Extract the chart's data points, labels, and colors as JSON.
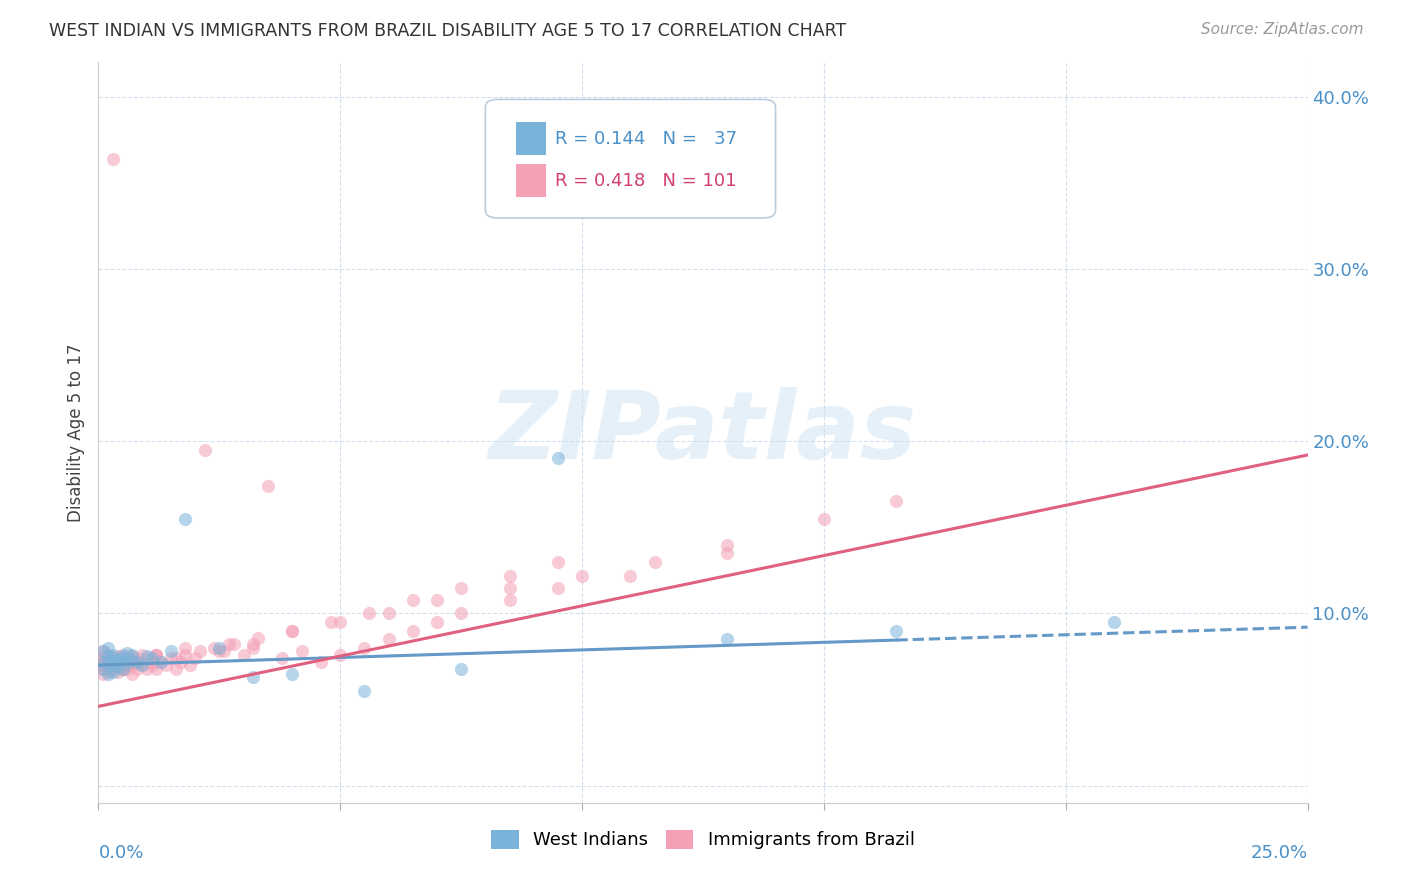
{
  "title": "WEST INDIAN VS IMMIGRANTS FROM BRAZIL DISABILITY AGE 5 TO 17 CORRELATION CHART",
  "source": "Source: ZipAtlas.com",
  "ylabel": "Disability Age 5 to 17",
  "xlim": [
    0.0,
    0.25
  ],
  "ylim": [
    -0.01,
    0.42
  ],
  "color_blue": "#7ab3d9",
  "color_pink": "#f4a0b5",
  "color_blue_line": "#6499c8",
  "color_pink_line": "#e06080",
  "color_blue_text": "#4a90c8",
  "color_pink_text": "#d04070",
  "wi_trend_x0": 0.0,
  "wi_trend_y0": 0.07,
  "wi_trend_x1": 0.25,
  "wi_trend_y1": 0.092,
  "br_trend_x0": 0.0,
  "br_trend_y0": 0.046,
  "br_trend_x1": 0.25,
  "br_trend_y1": 0.192,
  "wi_x": [
    0.001,
    0.001,
    0.001,
    0.002,
    0.002,
    0.002,
    0.002,
    0.003,
    0.003,
    0.003,
    0.003,
    0.004,
    0.004,
    0.004,
    0.005,
    0.005,
    0.005,
    0.006,
    0.006,
    0.007,
    0.007,
    0.008,
    0.009,
    0.01,
    0.011,
    0.013,
    0.015,
    0.018,
    0.025,
    0.032,
    0.04,
    0.055,
    0.075,
    0.095,
    0.13,
    0.165,
    0.21
  ],
  "wi_y": [
    0.072,
    0.068,
    0.078,
    0.065,
    0.075,
    0.08,
    0.072,
    0.07,
    0.074,
    0.066,
    0.076,
    0.073,
    0.069,
    0.071,
    0.075,
    0.068,
    0.074,
    0.077,
    0.071,
    0.073,
    0.076,
    0.072,
    0.07,
    0.075,
    0.074,
    0.072,
    0.078,
    0.155,
    0.08,
    0.063,
    0.065,
    0.055,
    0.068,
    0.19,
    0.085,
    0.09,
    0.095
  ],
  "br_x": [
    0.001,
    0.001,
    0.001,
    0.001,
    0.001,
    0.001,
    0.001,
    0.002,
    0.002,
    0.002,
    0.002,
    0.002,
    0.003,
    0.003,
    0.003,
    0.003,
    0.003,
    0.004,
    0.004,
    0.004,
    0.004,
    0.005,
    0.005,
    0.005,
    0.005,
    0.006,
    0.006,
    0.006,
    0.007,
    0.007,
    0.007,
    0.008,
    0.008,
    0.008,
    0.009,
    0.009,
    0.01,
    0.01,
    0.011,
    0.011,
    0.012,
    0.012,
    0.013,
    0.014,
    0.015,
    0.016,
    0.017,
    0.018,
    0.019,
    0.02,
    0.022,
    0.024,
    0.026,
    0.028,
    0.03,
    0.032,
    0.035,
    0.038,
    0.042,
    0.046,
    0.05,
    0.055,
    0.06,
    0.065,
    0.07,
    0.075,
    0.085,
    0.095,
    0.11,
    0.13,
    0.15,
    0.165,
    0.003,
    0.007,
    0.012,
    0.018,
    0.025,
    0.032,
    0.04,
    0.05,
    0.06,
    0.07,
    0.085,
    0.1,
    0.115,
    0.13,
    0.002,
    0.005,
    0.008,
    0.012,
    0.016,
    0.021,
    0.027,
    0.033,
    0.04,
    0.048,
    0.056,
    0.065,
    0.075,
    0.085,
    0.095
  ],
  "br_y": [
    0.065,
    0.072,
    0.068,
    0.075,
    0.07,
    0.074,
    0.078,
    0.066,
    0.073,
    0.069,
    0.076,
    0.071,
    0.364,
    0.068,
    0.074,
    0.07,
    0.072,
    0.066,
    0.073,
    0.069,
    0.075,
    0.068,
    0.072,
    0.076,
    0.07,
    0.074,
    0.068,
    0.072,
    0.07,
    0.075,
    0.065,
    0.072,
    0.068,
    0.074,
    0.07,
    0.076,
    0.068,
    0.074,
    0.07,
    0.072,
    0.068,
    0.076,
    0.072,
    0.07,
    0.074,
    0.068,
    0.072,
    0.076,
    0.07,
    0.074,
    0.195,
    0.08,
    0.078,
    0.082,
    0.076,
    0.08,
    0.174,
    0.074,
    0.078,
    0.072,
    0.076,
    0.08,
    0.085,
    0.09,
    0.095,
    0.1,
    0.108,
    0.115,
    0.122,
    0.135,
    0.155,
    0.165,
    0.074,
    0.072,
    0.076,
    0.08,
    0.078,
    0.082,
    0.09,
    0.095,
    0.1,
    0.108,
    0.115,
    0.122,
    0.13,
    0.14,
    0.07,
    0.068,
    0.072,
    0.076,
    0.074,
    0.078,
    0.082,
    0.086,
    0.09,
    0.095,
    0.1,
    0.108,
    0.115,
    0.122,
    0.13
  ]
}
